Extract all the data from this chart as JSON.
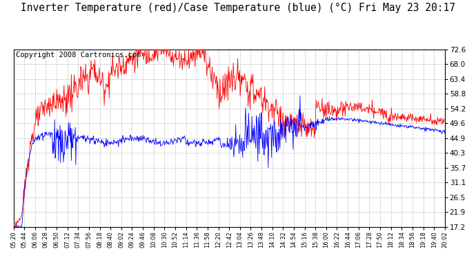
{
  "title": "Inverter Temperature (red)/Case Temperature (blue) (°C) Fri May 23 20:17",
  "copyright": "Copyright 2008 Cartronics.com",
  "y_ticks": [
    17.2,
    21.9,
    26.5,
    31.1,
    35.7,
    40.3,
    44.9,
    49.6,
    54.2,
    58.8,
    63.4,
    68.0,
    72.6
  ],
  "ylim": [
    17.2,
    72.6
  ],
  "x_labels": [
    "05:20",
    "05:44",
    "06:06",
    "06:28",
    "06:50",
    "07:12",
    "07:34",
    "07:56",
    "08:18",
    "08:40",
    "09:02",
    "09:24",
    "09:46",
    "10:08",
    "10:30",
    "10:52",
    "11:14",
    "11:36",
    "11:58",
    "12:20",
    "12:42",
    "13:04",
    "13:26",
    "13:48",
    "14:10",
    "14:32",
    "14:54",
    "15:16",
    "15:38",
    "16:00",
    "16:22",
    "16:44",
    "17:06",
    "17:28",
    "17:50",
    "18:12",
    "18:34",
    "18:56",
    "19:18",
    "19:40",
    "20:02"
  ],
  "background_color": "#ffffff",
  "plot_bg_color": "#ffffff",
  "grid_color": "#aaaaaa",
  "line_red": "#ff0000",
  "line_blue": "#0000ff",
  "title_fontsize": 10.5,
  "copyright_fontsize": 7.5
}
